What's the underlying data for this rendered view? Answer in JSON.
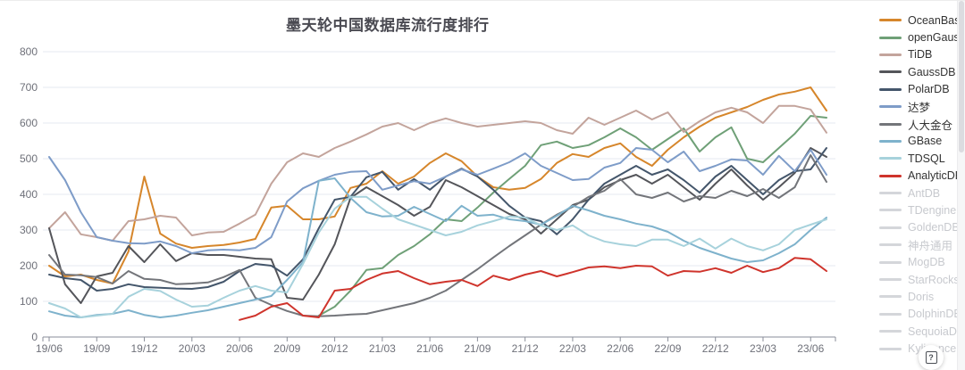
{
  "page": {
    "title": "墨天轮中国数据库流行度排行",
    "help_button_glyph": "?"
  },
  "chart_data": {
    "type": "line",
    "title": "墨天轮中国数据库流行度排行",
    "xlabel": "",
    "ylabel": "",
    "ylim": [
      0,
      800
    ],
    "y_interval": 100,
    "x_tick_every": 3,
    "grid": "horizontal",
    "legend_position": "right",
    "categories": [
      "19/06",
      "19/07",
      "19/08",
      "19/09",
      "19/10",
      "19/11",
      "19/12",
      "20/01",
      "20/02",
      "20/03",
      "20/04",
      "20/05",
      "20/06",
      "20/07",
      "20/08",
      "20/09",
      "20/10",
      "20/11",
      "20/12",
      "21/01",
      "21/02",
      "21/03",
      "21/04",
      "21/05",
      "21/06",
      "21/07",
      "21/08",
      "21/09",
      "21/10",
      "21/11",
      "21/12",
      "22/01",
      "22/02",
      "22/03",
      "22/04",
      "22/05",
      "22/06",
      "22/07",
      "22/08",
      "22/09",
      "22/10",
      "22/11",
      "22/12",
      "23/01",
      "23/02",
      "23/03",
      "23/04",
      "23/05",
      "23/06",
      "23/07"
    ],
    "series": [
      {
        "name": "OceanBase",
        "color": "#D6862B",
        "values": [
          200,
          170,
          175,
          160,
          150,
          240,
          450,
          290,
          262,
          250,
          255,
          258,
          265,
          275,
          363,
          368,
          330,
          330,
          338,
          418,
          430,
          465,
          430,
          450,
          488,
          515,
          493,
          450,
          420,
          413,
          418,
          443,
          488,
          513,
          505,
          530,
          543,
          505,
          480,
          525,
          560,
          590,
          615,
          630,
          645,
          665,
          680,
          688,
          700,
          635
        ]
      },
      {
        "name": "openGauss",
        "color": "#6FA077",
        "values": [
          null,
          null,
          null,
          null,
          null,
          null,
          null,
          null,
          null,
          null,
          null,
          null,
          null,
          null,
          null,
          null,
          null,
          60,
          85,
          130,
          188,
          193,
          230,
          255,
          288,
          330,
          325,
          363,
          405,
          443,
          480,
          538,
          548,
          530,
          538,
          560,
          585,
          560,
          525,
          555,
          585,
          520,
          560,
          588,
          500,
          490,
          530,
          570,
          620,
          615
        ]
      },
      {
        "name": "TiDB",
        "color": "#C3A49C",
        "values": [
          305,
          350,
          288,
          280,
          270,
          325,
          330,
          340,
          335,
          285,
          293,
          295,
          318,
          343,
          430,
          490,
          515,
          505,
          530,
          548,
          568,
          590,
          600,
          580,
          600,
          613,
          600,
          590,
          595,
          600,
          605,
          600,
          580,
          570,
          615,
          595,
          615,
          635,
          610,
          630,
          575,
          605,
          630,
          643,
          630,
          600,
          648,
          648,
          638,
          573
        ]
      },
      {
        "name": "GaussDB",
        "color": "#54555A",
        "values": [
          305,
          148,
          95,
          170,
          180,
          255,
          210,
          260,
          213,
          235,
          230,
          230,
          225,
          220,
          218,
          110,
          105,
          175,
          260,
          390,
          420,
          395,
          370,
          340,
          365,
          440,
          420,
          395,
          370,
          345,
          330,
          290,
          330,
          370,
          385,
          420,
          440,
          455,
          430,
          455,
          420,
          385,
          430,
          470,
          425,
          385,
          420,
          460,
          530,
          505
        ]
      },
      {
        "name": "PolarDB",
        "color": "#44566B",
        "values": [
          175,
          165,
          160,
          130,
          135,
          148,
          140,
          138,
          136,
          135,
          140,
          155,
          185,
          205,
          200,
          172,
          218,
          305,
          385,
          393,
          448,
          463,
          413,
          443,
          413,
          450,
          472,
          450,
          413,
          368,
          335,
          325,
          288,
          330,
          385,
          430,
          455,
          480,
          455,
          470,
          440,
          405,
          450,
          480,
          440,
          400,
          440,
          465,
          470,
          530
        ]
      },
      {
        "name": "达梦",
        "color": "#7E9CC8",
        "values": [
          505,
          440,
          350,
          280,
          270,
          263,
          262,
          268,
          255,
          235,
          243,
          245,
          243,
          250,
          280,
          380,
          417,
          438,
          455,
          463,
          465,
          413,
          425,
          437,
          430,
          450,
          470,
          455,
          472,
          490,
          515,
          480,
          460,
          440,
          443,
          475,
          488,
          530,
          525,
          490,
          520,
          465,
          480,
          498,
          495,
          455,
          508,
          465,
          525,
          455
        ]
      },
      {
        "name": "人大金仓",
        "color": "#73757A",
        "values": [
          230,
          175,
          173,
          168,
          150,
          185,
          163,
          160,
          148,
          150,
          153,
          168,
          188,
          110,
          90,
          73,
          60,
          58,
          60,
          63,
          65,
          75,
          85,
          95,
          110,
          130,
          160,
          190,
          223,
          255,
          285,
          315,
          343,
          365,
          393,
          410,
          443,
          400,
          390,
          405,
          380,
          395,
          390,
          410,
          395,
          415,
          390,
          420,
          510,
          435
        ]
      },
      {
        "name": "GBase",
        "color": "#7EB2CC",
        "values": [
          72,
          60,
          55,
          62,
          65,
          75,
          62,
          55,
          60,
          68,
          75,
          85,
          95,
          105,
          115,
          160,
          210,
          438,
          445,
          390,
          350,
          338,
          340,
          365,
          345,
          325,
          368,
          340,
          343,
          330,
          325,
          315,
          340,
          368,
          355,
          340,
          330,
          318,
          310,
          295,
          270,
          250,
          235,
          220,
          210,
          215,
          235,
          260,
          300,
          335
        ]
      },
      {
        "name": "TDSQL",
        "color": "#A7D2DC",
        "values": [
          95,
          80,
          55,
          60,
          65,
          113,
          135,
          129,
          105,
          85,
          88,
          110,
          130,
          143,
          130,
          125,
          205,
          293,
          360,
          393,
          393,
          360,
          330,
          315,
          300,
          285,
          295,
          313,
          325,
          338,
          335,
          313,
          300,
          313,
          285,
          268,
          260,
          255,
          273,
          273,
          255,
          276,
          248,
          276,
          255,
          243,
          260,
          300,
          315,
          330
        ]
      },
      {
        "name": "AnalyticDB",
        "color": "#CF342C",
        "values": [
          null,
          null,
          null,
          null,
          null,
          null,
          null,
          null,
          null,
          null,
          null,
          null,
          48,
          60,
          85,
          95,
          60,
          55,
          130,
          135,
          160,
          178,
          185,
          165,
          148,
          155,
          160,
          143,
          172,
          160,
          175,
          185,
          170,
          182,
          195,
          198,
          193,
          200,
          198,
          172,
          185,
          183,
          193,
          180,
          200,
          182,
          193,
          222,
          218,
          185
        ]
      }
    ],
    "disabled_series": [
      "AntDB",
      "TDengine",
      "GoldenDB",
      "神舟通用",
      "MogDB",
      "StarRocks",
      "Doris",
      "DolphinDB",
      "SequoiaDB",
      "Kyligence"
    ],
    "colors": {
      "grid_line": "#E4E9F2",
      "axis_line": "#8a8e99",
      "axis_label": "#6E7079",
      "disabled_legend": "#c7c9ce",
      "disabled_swatch": "#d4d6da"
    }
  }
}
